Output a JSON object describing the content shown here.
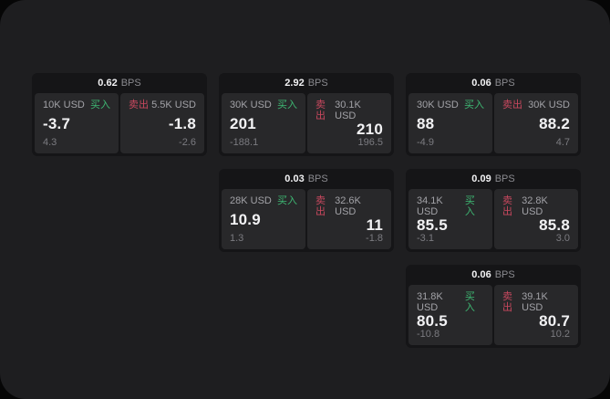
{
  "theme": {
    "bg-page": "#1e1e20",
    "bg-card": "#151517",
    "bg-panel": "#28282a",
    "green": "#3eb873",
    "red": "#c9485e",
    "text-bright": "#f2f2f4",
    "text-label": "#a2a2a7",
    "text-sub": "#7b7b80",
    "text-muted": "#8a8a8f"
  },
  "shared": {
    "bps_unit": "BPS",
    "buy_label": "买入",
    "sell_label": "卖出"
  },
  "cards": [
    {
      "row": 1,
      "col": 1,
      "bps": "0.62",
      "buy": {
        "amount": "10K USD",
        "value": "-3.7",
        "sub": "4.3"
      },
      "sell": {
        "amount": "5.5K USD",
        "value": "-1.8",
        "sub": "-2.6"
      }
    },
    {
      "row": 1,
      "col": 2,
      "bps": "2.92",
      "buy": {
        "amount": "30K USD",
        "value": "201",
        "sub": "-188.1"
      },
      "sell": {
        "amount": "30.1K USD",
        "value": "210",
        "sub": "196.5"
      }
    },
    {
      "row": 1,
      "col": 3,
      "bps": "0.06",
      "buy": {
        "amount": "30K USD",
        "value": "88",
        "sub": "-4.9"
      },
      "sell": {
        "amount": "30K USD",
        "value": "88.2",
        "sub": "4.7"
      }
    },
    {
      "row": 2,
      "col": 2,
      "bps": "0.03",
      "buy": {
        "amount": "28K USD",
        "value": "10.9",
        "sub": "1.3"
      },
      "sell": {
        "amount": "32.6K USD",
        "value": "11",
        "sub": "-1.8"
      }
    },
    {
      "row": 2,
      "col": 3,
      "bps": "0.09",
      "buy": {
        "amount": "34.1K USD",
        "value": "85.5",
        "sub": "-3.1"
      },
      "sell": {
        "amount": "32.8K USD",
        "value": "85.8",
        "sub": "3.0"
      }
    },
    {
      "row": 3,
      "col": 3,
      "bps": "0.06",
      "buy": {
        "amount": "31.8K USD",
        "value": "80.5",
        "sub": "-10.8"
      },
      "sell": {
        "amount": "39.1K USD",
        "value": "80.7",
        "sub": "10.2"
      }
    }
  ]
}
